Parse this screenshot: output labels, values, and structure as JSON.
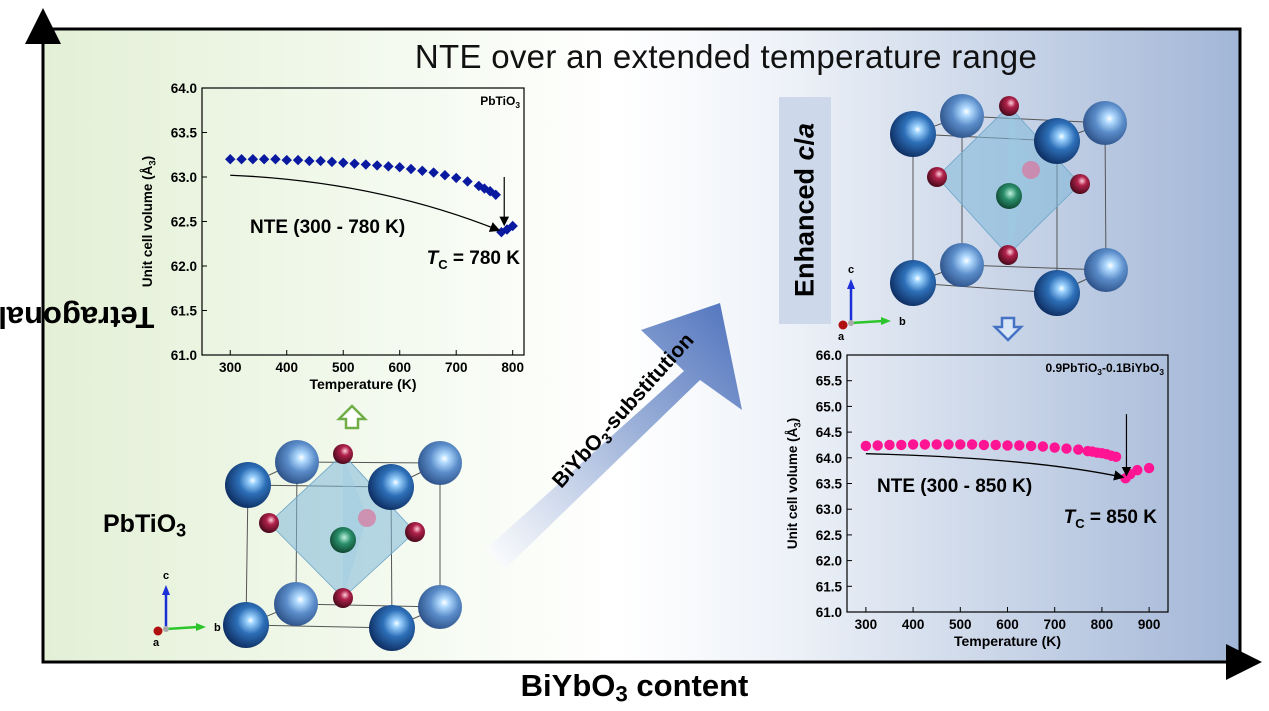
{
  "title": "NTE over an extended temperature range",
  "axes": {
    "x_label": "BiYbO3 content",
    "y_label": "Tetragonality (c/a)"
  },
  "arrow_label": "BiYbO3-substitution",
  "enhanced_label": "Enhanced c/a",
  "pbtio3_label": "PbTiO3",
  "axis_triad": {
    "c": "c",
    "a": "a",
    "b": "b"
  },
  "colors": {
    "series1": "#0a1aa0",
    "series2": "#ff1493",
    "panel_left": "#e6f2da",
    "panel_right": "#a6bad9"
  },
  "chart_data": [
    {
      "type": "scatter",
      "title": "PbTiO3",
      "xlabel": "Temperature (K)",
      "ylabel": "Unit cell volume (Å3)",
      "xlim": [
        250,
        820
      ],
      "ylim": [
        61.0,
        64.0
      ],
      "xticks": [
        300,
        400,
        500,
        600,
        700,
        800
      ],
      "yticks": [
        61.0,
        61.5,
        62.0,
        62.5,
        63.0,
        63.5,
        64.0
      ],
      "marker": "diamond",
      "color": "#0a1aa0",
      "x": [
        300,
        320,
        340,
        360,
        380,
        400,
        420,
        440,
        460,
        480,
        500,
        520,
        540,
        560,
        580,
        600,
        620,
        640,
        660,
        680,
        700,
        720,
        740,
        750,
        760,
        770,
        780,
        790,
        800
      ],
      "y": [
        63.2,
        63.2,
        63.2,
        63.2,
        63.2,
        63.19,
        63.19,
        63.18,
        63.18,
        63.17,
        63.16,
        63.15,
        63.14,
        63.13,
        63.12,
        63.11,
        63.09,
        63.07,
        63.05,
        63.02,
        62.99,
        62.95,
        62.9,
        62.87,
        62.84,
        62.8,
        62.38,
        62.41,
        62.45
      ],
      "annotations": {
        "nte": "NTE (300 - 780 K)",
        "tc": "T",
        "tc_sub": "C",
        "tc_value": " = 780 K"
      }
    },
    {
      "type": "scatter",
      "title": "0.9PbTiO3-0.1BiYbO3",
      "xlabel": "Temperature (K)",
      "ylabel": "Unit cell volume (Å3)",
      "xlim": [
        260,
        940
      ],
      "ylim": [
        61.0,
        66.0
      ],
      "xticks": [
        300,
        400,
        500,
        600,
        700,
        800,
        900
      ],
      "yticks": [
        61.0,
        61.5,
        62.0,
        62.5,
        63.0,
        63.5,
        64.0,
        64.5,
        65.0,
        65.5,
        66.0
      ],
      "marker": "circle",
      "color": "#ff1493",
      "x": [
        300,
        325,
        350,
        375,
        400,
        425,
        450,
        475,
        500,
        525,
        550,
        575,
        600,
        625,
        650,
        675,
        700,
        725,
        750,
        770,
        780,
        790,
        800,
        810,
        820,
        830,
        850,
        860,
        875,
        900
      ],
      "y": [
        64.23,
        64.24,
        64.25,
        64.25,
        64.26,
        64.26,
        64.26,
        64.26,
        64.26,
        64.26,
        64.25,
        64.25,
        64.24,
        64.24,
        64.23,
        64.22,
        64.2,
        64.18,
        64.16,
        64.13,
        64.12,
        64.1,
        64.09,
        64.07,
        64.04,
        64.02,
        63.6,
        63.68,
        63.76,
        63.8
      ],
      "annotations": {
        "nte": "NTE (300 - 850 K)",
        "tc": "T",
        "tc_sub": "C",
        "tc_value": " = 850 K"
      }
    }
  ]
}
